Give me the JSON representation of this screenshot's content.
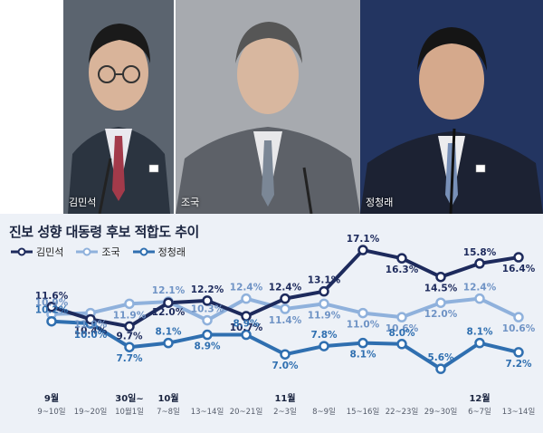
{
  "photos": [
    {
      "caption": "김민석"
    },
    {
      "caption": "조국"
    },
    {
      "caption": "정청래"
    }
  ],
  "colors": {
    "navy": "#1d2a5c",
    "light": "#8fb1dc",
    "mid": "#2f6fb0",
    "bg": "#edf1f7"
  },
  "chart_data": {
    "type": "line",
    "title": "진보 성향 대동령 후보 적합도 추이",
    "xlabel": "",
    "ylabel": "",
    "ylim": [
      4,
      18
    ],
    "grid": false,
    "legend": "top-left",
    "x": [
      "9~10일",
      "19~20일",
      "30일~10월1일",
      "7~8일",
      "13~14일",
      "20~21일",
      "2~3일",
      "8~9일",
      "15~16일",
      "22~23일",
      "29~30일",
      "6~7일",
      "13~14일"
    ],
    "x_ticks": [
      {
        "line1": "9월",
        "line2": "9~10일"
      },
      {
        "line1": "",
        "line2": "19~20일"
      },
      {
        "line1": "30일~",
        "line2": "10월1일"
      },
      {
        "line1": "10월",
        "line2": "7~8일"
      },
      {
        "line1": "",
        "line2": "13~14일"
      },
      {
        "line1": "",
        "line2": "20~21일"
      },
      {
        "line1": "11월",
        "line2": "2~3일"
      },
      {
        "line1": "",
        "line2": "8~9일"
      },
      {
        "line1": "",
        "line2": "15~16일"
      },
      {
        "line1": "",
        "line2": "22~23일"
      },
      {
        "line1": "",
        "line2": "29~30일"
      },
      {
        "line1": "12월",
        "line2": "6~7일"
      },
      {
        "line1": "",
        "line2": "13~14일"
      }
    ],
    "series": [
      {
        "name": "김민석",
        "color": "#1d2a5c",
        "values": [
          11.6,
          10.4,
          9.7,
          12.0,
          12.2,
          10.7,
          12.4,
          13.1,
          17.1,
          16.3,
          14.5,
          15.8,
          16.4
        ],
        "labels": [
          "11.6%",
          "10.4%",
          "9.7%",
          "12.0%",
          "12.2%",
          "10.7%",
          "12.4%",
          "13.1%",
          "17.1%",
          "16.3%",
          "14.5%",
          "15.8%",
          "16.4%"
        ]
      },
      {
        "name": "조국",
        "color": "#8fb1dc",
        "values": [
          10.9,
          11.0,
          11.9,
          12.1,
          10.3,
          12.4,
          11.4,
          11.9,
          11.0,
          10.6,
          12.0,
          12.4,
          10.6
        ],
        "labels": [
          "10.9%",
          "11.0%",
          "11.9%",
          "12.1%",
          "10.3%",
          "12.4%",
          "11.4%",
          "11.9%",
          "11.0%",
          "10.6%",
          "12.0%",
          "12.4%",
          "10.6%"
        ]
      },
      {
        "name": "정청래",
        "color": "#2f6fb0",
        "values": [
          10.2,
          10.0,
          7.7,
          8.1,
          8.9,
          8.9,
          7.0,
          7.8,
          8.1,
          8.0,
          5.6,
          8.1,
          7.2
        ],
        "labels": [
          "10.2%",
          "10.0%",
          "7.7%",
          "8.1%",
          "8.9%",
          "8.9%",
          "7.0%",
          "7.8%",
          "8.1%",
          "8.0%",
          "5.6%",
          "8.1%",
          "7.2%"
        ]
      }
    ]
  }
}
